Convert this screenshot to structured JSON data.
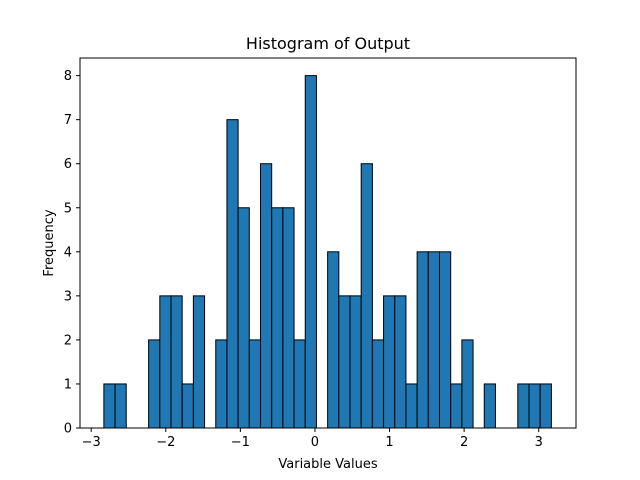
{
  "chart_data": {
    "type": "bar",
    "title": "Histogram of Output",
    "xlabel": "Variable Values",
    "ylabel": "Frequency",
    "xlim": [
      -3.15,
      3.5
    ],
    "ylim": [
      0,
      8.4
    ],
    "xticks": [
      -3,
      -2,
      -1,
      0,
      1,
      2,
      3
    ],
    "xtick_labels": [
      "−3",
      "−2",
      "−1",
      "0",
      "1",
      "2",
      "3"
    ],
    "yticks": [
      0,
      1,
      2,
      3,
      4,
      5,
      6,
      7,
      8
    ],
    "ytick_labels": [
      "0",
      "1",
      "2",
      "3",
      "4",
      "5",
      "6",
      "7",
      "8"
    ],
    "bin_start": -2.83,
    "bin_width": 0.15,
    "values": [
      1,
      1,
      0,
      0,
      2,
      3,
      3,
      1,
      3,
      0,
      2,
      7,
      5,
      2,
      6,
      5,
      5,
      2,
      8,
      0,
      4,
      3,
      3,
      6,
      2,
      3,
      3,
      1,
      4,
      4,
      4,
      1,
      2,
      0,
      1,
      0,
      0,
      1,
      1,
      1
    ],
    "bar_color": "#1f77b4",
    "edge_color": "#000000",
    "grid": false,
    "legend": "none"
  }
}
